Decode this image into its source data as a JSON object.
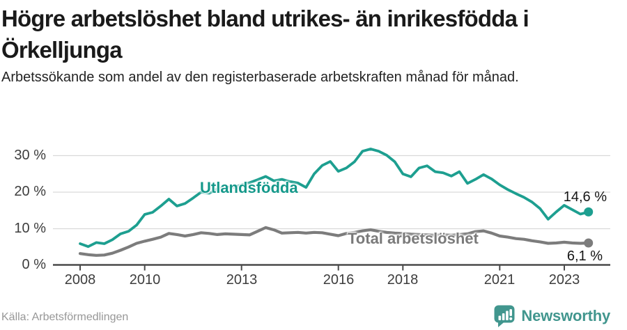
{
  "chart_data": {
    "type": "line",
    "title": "Högre arbetslöshet bland utrikes- än inrikesfödda i Örkelljunga",
    "title_lines": [
      "Högre arbetslöshet bland utrikes- än inrikesfödda i",
      "Örkelljunga"
    ],
    "subtitle": "Arbetssökande som andel av den registerbaserade arbetskraften månad för månad.",
    "xlabel": "",
    "ylabel": "",
    "ylim": [
      0,
      33
    ],
    "grid": "horizontal",
    "legend_position": "inline-labels",
    "x": [
      2008.0,
      2008.25,
      2008.5,
      2008.75,
      2009.0,
      2009.25,
      2009.5,
      2009.75,
      2010.0,
      2010.25,
      2010.5,
      2010.75,
      2011.0,
      2011.25,
      2011.5,
      2011.75,
      2012.0,
      2012.25,
      2012.5,
      2012.75,
      2013.0,
      2013.25,
      2013.5,
      2013.75,
      2014.0,
      2014.25,
      2014.5,
      2014.75,
      2015.0,
      2015.25,
      2015.5,
      2015.75,
      2016.0,
      2016.25,
      2016.5,
      2016.75,
      2017.0,
      2017.25,
      2017.5,
      2017.75,
      2018.0,
      2018.25,
      2018.5,
      2018.75,
      2019.0,
      2019.25,
      2019.5,
      2019.75,
      2020.0,
      2020.25,
      2020.5,
      2020.75,
      2021.0,
      2021.25,
      2021.5,
      2021.75,
      2022.0,
      2022.25,
      2022.5,
      2022.75,
      2023.0,
      2023.25,
      2023.5,
      2023.75
    ],
    "series": [
      {
        "name": "Utlandsfödda",
        "color": "#1d9f90",
        "end_label": "14,6 %",
        "values": [
          5.9,
          5.1,
          6.2,
          5.9,
          7.0,
          8.6,
          9.3,
          11.0,
          13.9,
          14.5,
          16.2,
          18.1,
          16.2,
          16.9,
          18.4,
          20.0,
          19.7,
          20.9,
          21.4,
          21.3,
          22.0,
          22.6,
          23.4,
          24.3,
          23.1,
          23.5,
          22.9,
          22.5,
          21.3,
          25.0,
          27.3,
          28.4,
          25.7,
          26.6,
          28.3,
          31.2,
          31.8,
          31.2,
          30.1,
          28.3,
          25.0,
          24.2,
          26.6,
          27.2,
          25.6,
          25.3,
          24.4,
          25.6,
          22.4,
          23.5,
          24.8,
          23.6,
          22.0,
          20.7,
          19.6,
          18.6,
          17.3,
          15.5,
          12.6,
          14.6,
          16.4,
          15.2,
          14.0,
          14.6
        ]
      },
      {
        "name": "Total arbetslöshet",
        "color": "#7c7c7c",
        "end_label": "6,1 %",
        "values": [
          3.2,
          2.9,
          2.7,
          2.8,
          3.3,
          4.1,
          5.0,
          6.0,
          6.6,
          7.1,
          7.7,
          8.7,
          8.4,
          8.0,
          8.4,
          8.9,
          8.7,
          8.4,
          8.6,
          8.5,
          8.4,
          8.3,
          9.3,
          10.3,
          9.7,
          8.8,
          8.9,
          9.0,
          8.8,
          9.0,
          8.9,
          8.5,
          8.1,
          8.7,
          9.0,
          9.4,
          9.7,
          9.3,
          9.0,
          8.8,
          8.7,
          8.5,
          8.4,
          8.3,
          8.2,
          8.3,
          8.2,
          8.4,
          8.6,
          9.2,
          9.4,
          8.8,
          8.0,
          7.7,
          7.3,
          7.1,
          6.7,
          6.4,
          6.0,
          6.1,
          6.3,
          6.1,
          6.0,
          6.1
        ]
      }
    ],
    "y_ticks": [
      {
        "value": 30,
        "label": "30 %"
      },
      {
        "value": 20,
        "label": "20 %"
      },
      {
        "value": 10,
        "label": "10 %"
      },
      {
        "value": 0,
        "label": "0 %"
      }
    ],
    "x_ticks": [
      {
        "value": 2008,
        "label": "2008"
      },
      {
        "value": 2010,
        "label": "2010"
      },
      {
        "value": 2013,
        "label": "2013"
      },
      {
        "value": 2016,
        "label": "2016"
      },
      {
        "value": 2018,
        "label": "2018"
      },
      {
        "value": 2021,
        "label": "2021"
      },
      {
        "value": 2023,
        "label": "2023"
      }
    ]
  },
  "footer": {
    "source": "Källa: Arbetsförmedlingen",
    "logo_text": "Newsworthy"
  },
  "colors": {
    "accent_teal": "#1d9f90",
    "line_gray": "#7c7c7c",
    "grid": "#d9d9d9",
    "axis": "#4d4d4d",
    "logo_teal": "#41968e"
  }
}
